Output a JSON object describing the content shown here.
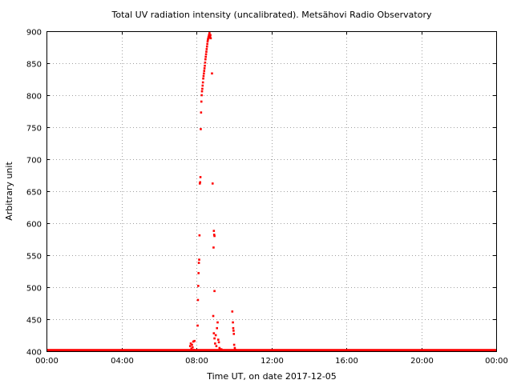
{
  "chart_data": {
    "type": "scatter",
    "title": "Total UV radiation intensity (uncalibrated). Metsähovi Radio Observatory",
    "xlabel": "Time UT, on date 2017-12-05",
    "ylabel": "Arbitrary unit",
    "xlim": [
      "00:00",
      "24:00"
    ],
    "ylim": [
      400,
      900
    ],
    "x_ticks": [
      "00:00",
      "04:00",
      "08:00",
      "12:00",
      "16:00",
      "20:00",
      "00:00"
    ],
    "y_ticks": [
      400,
      450,
      500,
      550,
      600,
      650,
      700,
      750,
      800,
      850,
      900
    ],
    "grid": true,
    "marker_color": "#ff0000",
    "baseline": {
      "from": "00:00",
      "to": "24:00",
      "value": 401
    },
    "points": [
      [
        "07:40",
        408
      ],
      [
        "07:42",
        412
      ],
      [
        "07:44",
        404
      ],
      [
        "07:46",
        410
      ],
      [
        "07:48",
        406
      ],
      [
        "07:50",
        415
      ],
      [
        "07:52",
        402
      ],
      [
        "07:54",
        416
      ],
      [
        "08:04",
        440
      ],
      [
        "08:05",
        480
      ],
      [
        "08:06",
        502
      ],
      [
        "08:07",
        522
      ],
      [
        "08:08",
        538
      ],
      [
        "08:09",
        543
      ],
      [
        "08:10",
        581
      ],
      [
        "08:11",
        662
      ],
      [
        "08:12",
        664
      ],
      [
        "08:13",
        672
      ],
      [
        "08:14",
        747
      ],
      [
        "08:15",
        773
      ],
      [
        "08:16",
        790
      ],
      [
        "08:17",
        800
      ],
      [
        "08:18",
        806
      ],
      [
        "08:19",
        810
      ],
      [
        "08:20",
        815
      ],
      [
        "08:21",
        820
      ],
      [
        "08:22",
        826
      ],
      [
        "08:23",
        830
      ],
      [
        "08:24",
        834
      ],
      [
        "08:25",
        838
      ],
      [
        "08:26",
        842
      ],
      [
        "08:27",
        846
      ],
      [
        "08:28",
        851
      ],
      [
        "08:29",
        856
      ],
      [
        "08:30",
        860
      ],
      [
        "08:31",
        864
      ],
      [
        "08:32",
        868
      ],
      [
        "08:33",
        872
      ],
      [
        "08:34",
        876
      ],
      [
        "08:35",
        880
      ],
      [
        "08:36",
        884
      ],
      [
        "08:37",
        887
      ],
      [
        "08:38",
        889
      ],
      [
        "08:39",
        891
      ],
      [
        "08:40",
        893
      ],
      [
        "08:41",
        895
      ],
      [
        "08:42",
        897
      ],
      [
        "08:43",
        890
      ],
      [
        "08:44",
        892
      ],
      [
        "08:45",
        894
      ],
      [
        "08:46",
        889
      ],
      [
        "08:50",
        834
      ],
      [
        "08:52",
        662
      ],
      [
        "08:56",
        588
      ],
      [
        "08:57",
        582
      ],
      [
        "08:58",
        580
      ],
      [
        "08:55",
        562
      ],
      [
        "08:58",
        494
      ],
      [
        "08:54",
        455
      ],
      [
        "08:56",
        428
      ],
      [
        "08:58",
        420
      ],
      [
        "09:00",
        412
      ],
      [
        "09:02",
        425
      ],
      [
        "09:04",
        408
      ],
      [
        "09:06",
        436
      ],
      [
        "09:08",
        445
      ],
      [
        "09:10",
        418
      ],
      [
        "09:12",
        414
      ],
      [
        "09:14",
        405
      ],
      [
        "09:16",
        402
      ],
      [
        "09:20",
        403
      ],
      [
        "09:25",
        401
      ],
      [
        "09:55",
        462
      ],
      [
        "09:57",
        445
      ],
      [
        "09:58",
        436
      ],
      [
        "09:59",
        432
      ],
      [
        "10:00",
        427
      ],
      [
        "10:01",
        410
      ],
      [
        "10:03",
        405
      ],
      [
        "10:05",
        402
      ]
    ]
  }
}
